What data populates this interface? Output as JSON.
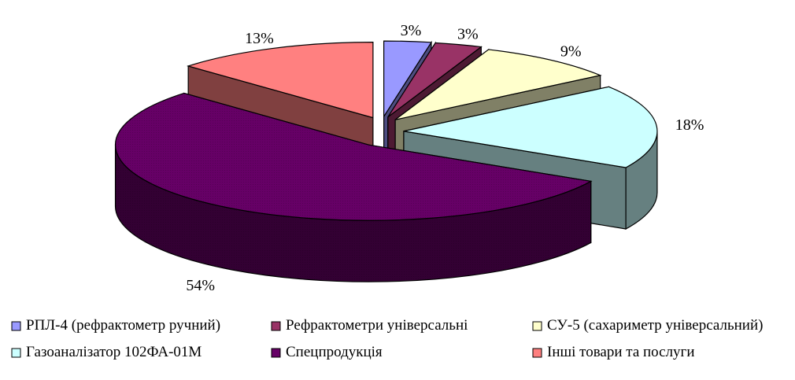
{
  "chart_data": {
    "type": "pie",
    "style": "3d-exploded",
    "title": "",
    "legend_position": "bottom",
    "series": [
      {
        "name": "РПЛ-4 (рефрактометр ручний)",
        "value": 3,
        "label": "3%",
        "color": "#9999ff",
        "side_color": "#4d4d80"
      },
      {
        "name": "Рефрактометри універсальні",
        "value": 3,
        "label": "3%",
        "color": "#993366",
        "side_color": "#4d1a33"
      },
      {
        "name": "СУ-5 (сахариметр універсальний)",
        "value": 9,
        "label": "9%",
        "color": "#ffffcc",
        "side_color": "#808066"
      },
      {
        "name": "Газоаналізатор 102ФА-01М",
        "value": 18,
        "label": "18%",
        "color": "#ccffff",
        "side_color": "#668080"
      },
      {
        "name": "Спецпродукція",
        "value": 54,
        "label": "54%",
        "color": "#660066",
        "side_color": "#330033"
      },
      {
        "name": "Інші товари та послуги",
        "value": 13,
        "label": "13%",
        "color": "#ff8080",
        "side_color": "#804040"
      }
    ]
  }
}
